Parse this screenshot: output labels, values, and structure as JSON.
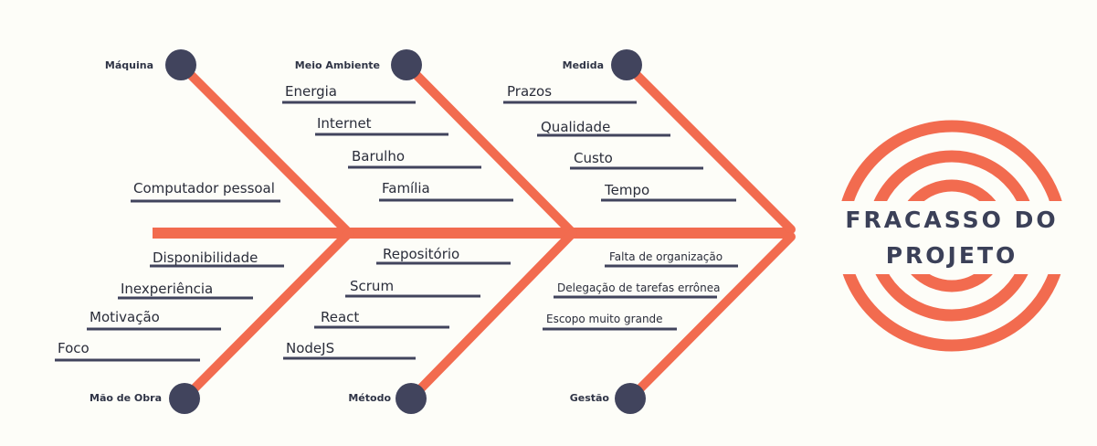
{
  "colors": {
    "bone": "#f26b4f",
    "dot": "#41445d",
    "line": "#41445d",
    "text": "#2a2d3a",
    "background": "#fdfdf8"
  },
  "head": {
    "line1": "FRACASSO DO",
    "line2": "PROJETO"
  },
  "categories": {
    "maquina": "Máquina",
    "meio_ambiente": "Meio Ambiente",
    "medida": "Medida",
    "mao_de_obra": "Mão de Obra",
    "metodo": "Método",
    "gestao": "Gestão"
  },
  "causes": {
    "maquina": [
      "Computador pessoal"
    ],
    "meio_ambiente": [
      "Energia",
      "Internet",
      "Barulho",
      "Família"
    ],
    "medida": [
      "Prazos",
      "Qualidade",
      "Custo",
      "Tempo"
    ],
    "mao_de_obra": [
      "Disponibilidade",
      "Inexperiência",
      "Motivação",
      "Foco"
    ],
    "metodo": [
      "Repositório",
      "Scrum",
      "React",
      "NodeJS"
    ],
    "gestao": [
      "Falta de organização",
      "Delegação de tarefas errônea",
      "Escopo muito grande"
    ]
  }
}
